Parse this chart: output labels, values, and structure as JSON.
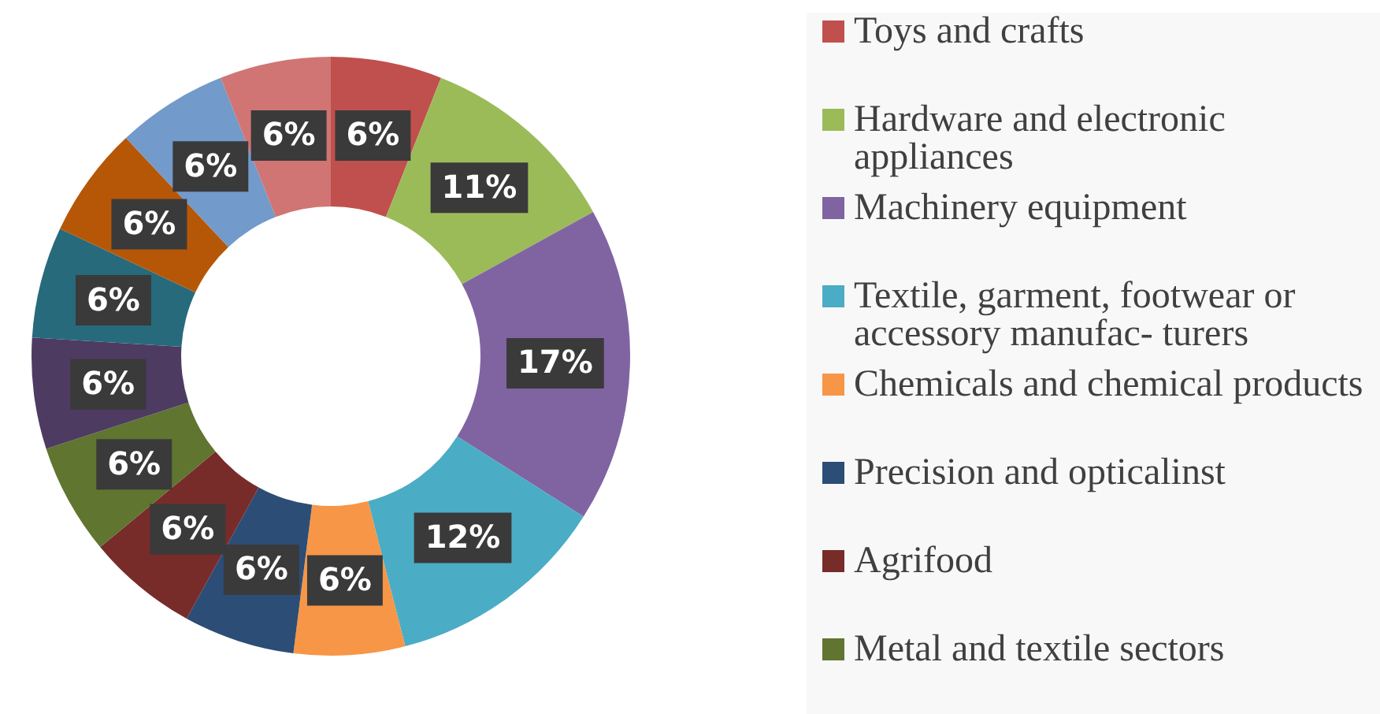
{
  "chart_data": {
    "type": "donut",
    "categories": [
      "Toys and crafts",
      "Hardware and electronic appliances",
      "Machinery equipment",
      "Textile, garment, footwear or accessory manufac- turers",
      "Chemicals and chemical products",
      "Precision and opticalinst",
      "Agrifood",
      "Metal and  textile sectors",
      null,
      null,
      null,
      null,
      null
    ],
    "values": [
      6,
      11,
      17,
      12,
      6,
      6,
      6,
      6,
      6,
      6,
      6,
      6,
      6
    ],
    "colors": [
      "#c0504d",
      "#9bbb59",
      "#8064a2",
      "#4bacc6",
      "#f79646",
      "#2c4d75",
      "#772c2a",
      "#5f7530",
      "#4d3b62",
      "#276a7c",
      "#b65708",
      "#729aca",
      "#d07573"
    ],
    "value_labels": [
      "6%",
      "11%",
      "17%",
      "12%",
      "6%",
      "6%",
      "6%",
      "6%",
      "6%",
      "6%",
      "6%",
      "6%",
      "6%"
    ],
    "legend": "right"
  }
}
